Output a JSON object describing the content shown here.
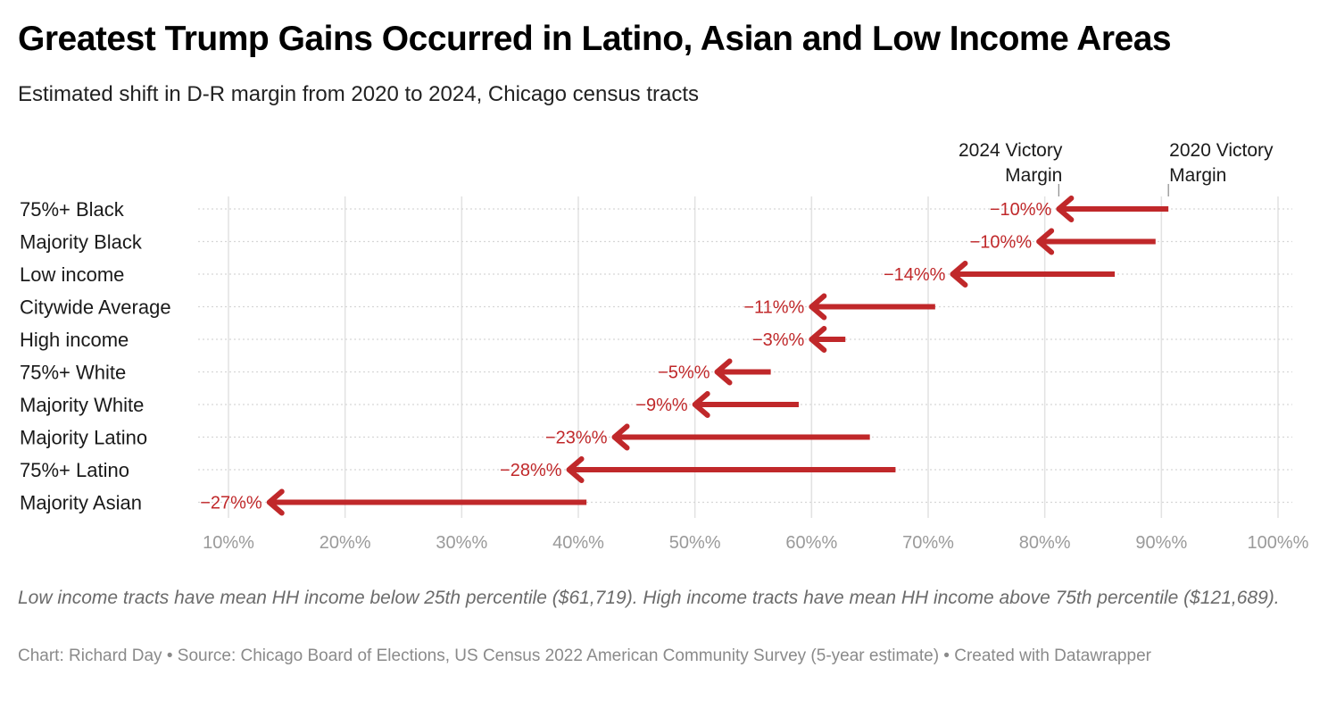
{
  "title": "Greatest Trump Gains Occurred in Latino, Asian and Low Income Areas",
  "subtitle": "Estimated shift in D-R margin from 2020 to 2024, Chicago census tracts",
  "notes": "Low income tracts have mean HH income below 25th percentile ($61,719). High income tracts have mean HH income above 75th percentile ($121,689).",
  "source": "Chart: Richard Day • Source: Chicago Board of Elections, US Census 2022 American Community Survey (5-year estimate) • Created with Datawrapper",
  "colors": {
    "arrow": "#c0282a",
    "grid": "#e2e2e2",
    "tick": "#9a9a9a"
  },
  "chart_data": {
    "type": "arrow",
    "xlim": [
      10,
      100
    ],
    "x_ticks": [
      10,
      20,
      30,
      40,
      50,
      60,
      70,
      80,
      90,
      100
    ],
    "x_tick_labels": [
      "10%%",
      "20%%",
      "30%%",
      "40%%",
      "50%%",
      "60%%",
      "70%%",
      "80%%",
      "90%%",
      "100%%"
    ],
    "series": [
      {
        "name": "2020 Victory Margin",
        "values": [
          90.6,
          89.5,
          86.0,
          70.6,
          62.9,
          56.5,
          58.9,
          65.0,
          67.2,
          40.7
        ]
      },
      {
        "name": "2024 Victory Margin",
        "values": [
          81.2,
          79.5,
          72.1,
          60.0,
          60.0,
          51.9,
          50.0,
          43.1,
          39.2,
          13.5
        ]
      }
    ],
    "categories": [
      "75%+ Black",
      "Majority Black",
      "Low income",
      "Citywide Average",
      "High income",
      "75%+ White",
      "Majority White",
      "Majority Latino",
      "75%+ Latino",
      "Majority Asian"
    ],
    "change_labels": [
      "−10%%",
      "−10%%",
      "−14%%",
      "−11%%",
      "−3%%",
      "−5%%",
      "−9%%",
      "−23%%",
      "−28%%",
      "−27%%"
    ],
    "annotations": [
      {
        "text": [
          "2024 Victory",
          "Margin"
        ],
        "series": "2024 Victory Margin"
      },
      {
        "text": [
          "2020 Victory",
          "Margin"
        ],
        "series": "2020 Victory Margin"
      }
    ]
  }
}
